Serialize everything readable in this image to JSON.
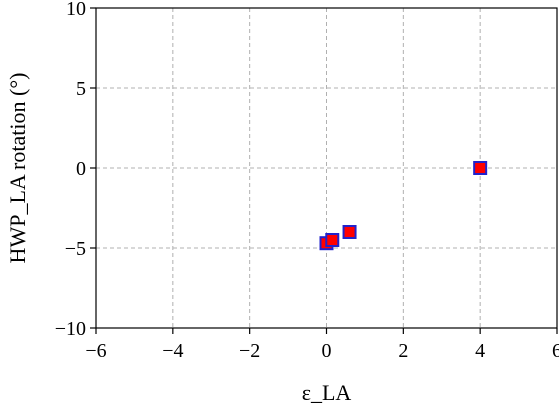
{
  "chart_data": {
    "type": "scatter",
    "title": "",
    "xlabel": "ε_LA",
    "ylabel": "HWP_LA  rotation (°)",
    "xlim": [
      -6,
      6
    ],
    "ylim": [
      -10,
      10
    ],
    "xticks": [
      -6,
      -4,
      -2,
      0,
      2,
      4,
      6
    ],
    "yticks": [
      -10,
      -5,
      0,
      5,
      10
    ],
    "xtick_labels": [
      "−6",
      "−4",
      "−2",
      "0",
      "2",
      "4",
      "6"
    ],
    "ytick_labels": [
      "−10",
      "−5",
      "0",
      "5",
      "10"
    ],
    "grid": true,
    "grid_style": "dashed",
    "marker": "square",
    "marker_fill": "#ff0000",
    "marker_edge": "#2222cc",
    "series": [
      {
        "points": [
          {
            "x": 0.0,
            "y": -4.7
          },
          {
            "x": 0.15,
            "y": -4.5
          },
          {
            "x": 0.6,
            "y": -4.0
          },
          {
            "x": 4.0,
            "y": 0.0
          }
        ]
      }
    ]
  }
}
